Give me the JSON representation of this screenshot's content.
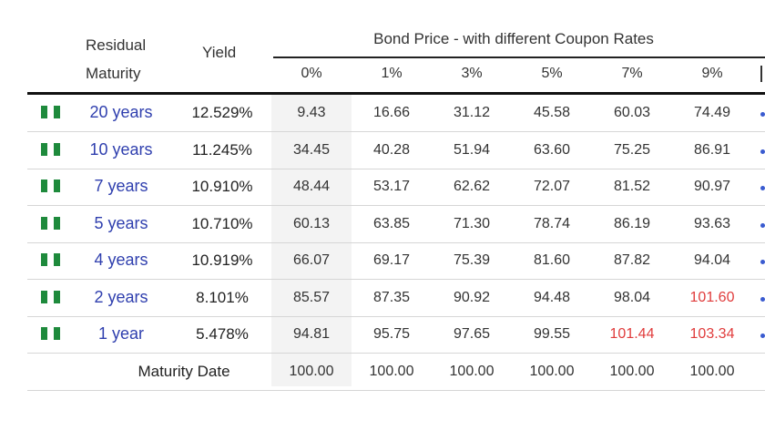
{
  "header": {
    "residual_line1": "Residual",
    "residual_line2": "Maturity",
    "yield": "Yield",
    "bond_price": "Bond Price - with different Coupon Rates",
    "rates": [
      "0%",
      "1%",
      "3%",
      "5%",
      "7%",
      "9%"
    ]
  },
  "rows": [
    {
      "maturity": "20 years",
      "yield": "12.529%",
      "prices": [
        "9.43",
        "16.66",
        "31.12",
        "45.58",
        "60.03",
        "74.49"
      ],
      "red": [
        false,
        false,
        false,
        false,
        false,
        false
      ]
    },
    {
      "maturity": "10 years",
      "yield": "11.245%",
      "prices": [
        "34.45",
        "40.28",
        "51.94",
        "63.60",
        "75.25",
        "86.91"
      ],
      "red": [
        false,
        false,
        false,
        false,
        false,
        false
      ]
    },
    {
      "maturity": "7 years",
      "yield": "10.910%",
      "prices": [
        "48.44",
        "53.17",
        "62.62",
        "72.07",
        "81.52",
        "90.97"
      ],
      "red": [
        false,
        false,
        false,
        false,
        false,
        false
      ]
    },
    {
      "maturity": "5 years",
      "yield": "10.710%",
      "prices": [
        "60.13",
        "63.85",
        "71.30",
        "78.74",
        "86.19",
        "93.63"
      ],
      "red": [
        false,
        false,
        false,
        false,
        false,
        false
      ]
    },
    {
      "maturity": "4 years",
      "yield": "10.919%",
      "prices": [
        "66.07",
        "69.17",
        "75.39",
        "81.60",
        "87.82",
        "94.04"
      ],
      "red": [
        false,
        false,
        false,
        false,
        false,
        false
      ]
    },
    {
      "maturity": "2 years",
      "yield": "8.101%",
      "prices": [
        "85.57",
        "87.35",
        "90.92",
        "94.48",
        "98.04",
        "101.60"
      ],
      "red": [
        false,
        false,
        false,
        false,
        false,
        true
      ]
    },
    {
      "maturity": "1 year",
      "yield": "5.478%",
      "prices": [
        "94.81",
        "95.75",
        "97.65",
        "99.55",
        "101.44",
        "103.34"
      ],
      "red": [
        false,
        false,
        false,
        false,
        true,
        true
      ]
    }
  ],
  "maturity_date": {
    "label": "Maturity Date",
    "prices": [
      "100.00",
      "100.00",
      "100.00",
      "100.00",
      "100.00",
      "100.00"
    ]
  },
  "colors": {
    "link": "#2f3fae",
    "premium_red": "#e03c3c",
    "flag_green": "#1e8a3c"
  },
  "icons": {
    "flag": "nigeria-flag-icon"
  }
}
